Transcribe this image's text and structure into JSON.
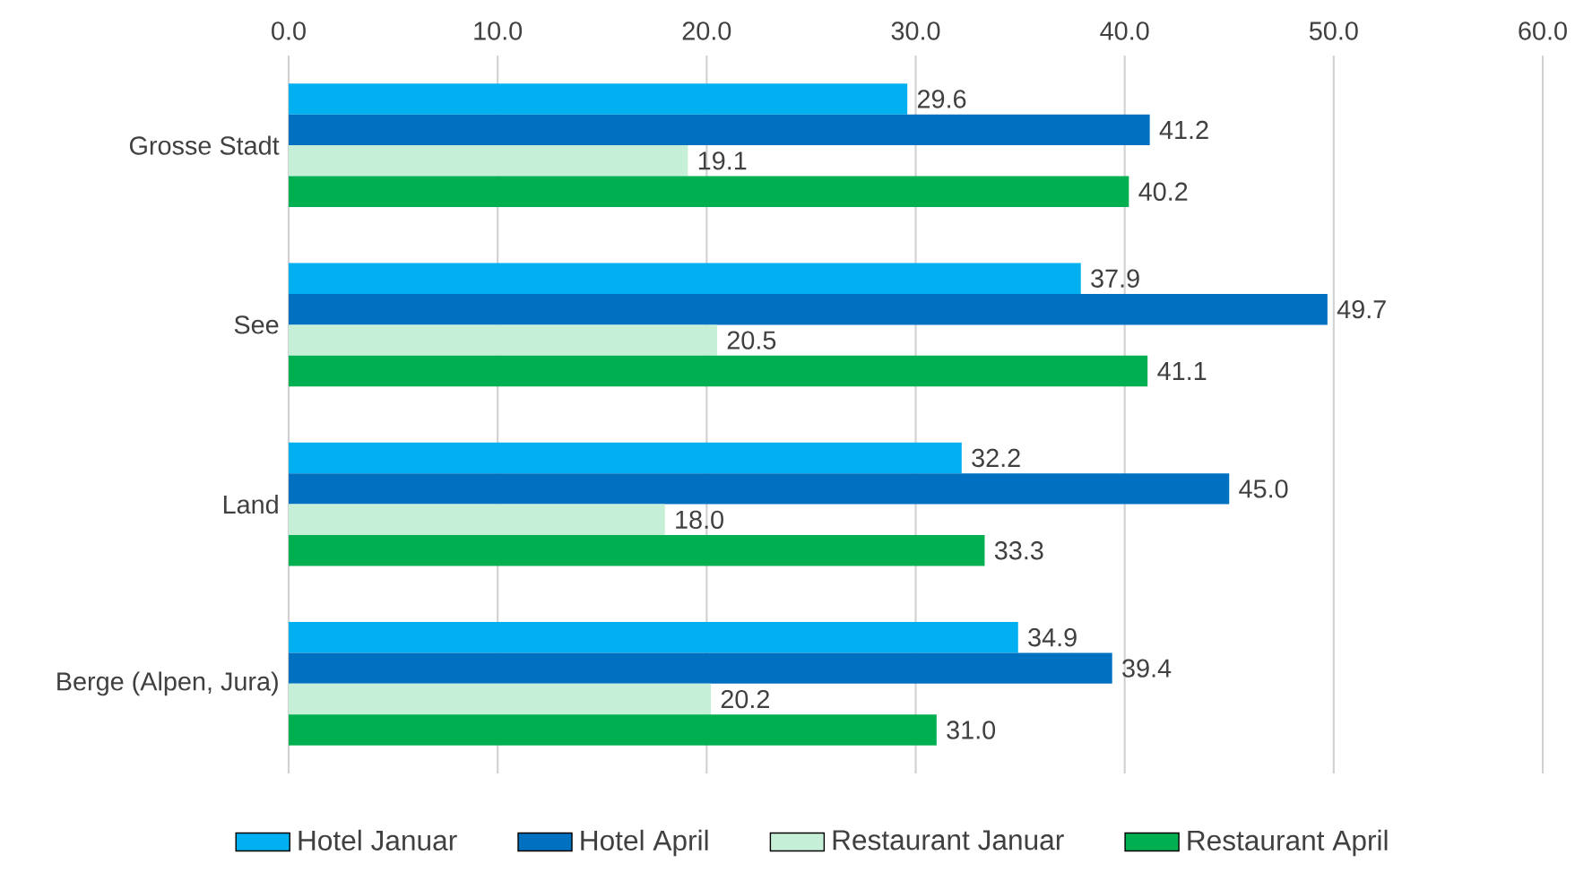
{
  "chart_data": {
    "type": "bar",
    "orientation": "horizontal",
    "categories": [
      "Grosse Stadt",
      "See",
      "Land",
      "Berge (Alpen, Jura)"
    ],
    "series": [
      {
        "name": "Hotel Januar",
        "color": "#00b0f0",
        "values": [
          29.6,
          37.9,
          32.2,
          34.9
        ],
        "value_labels": [
          "29.6",
          "37.9",
          "32.2",
          "34.9"
        ]
      },
      {
        "name": "Hotel April",
        "color": "#0070c0",
        "values": [
          41.2,
          49.7,
          45.0,
          39.4
        ],
        "value_labels": [
          "41.2",
          "49.7",
          "45.0",
          "39.4"
        ]
      },
      {
        "name": "Restaurant Januar",
        "color": "#c6efd7",
        "values": [
          19.1,
          20.5,
          18.0,
          20.2
        ],
        "value_labels": [
          "19.1",
          "20.5",
          "18.0",
          "20.2"
        ]
      },
      {
        "name": "Restaurant April",
        "color": "#00b050",
        "values": [
          40.2,
          41.1,
          33.3,
          31.0
        ],
        "value_labels": [
          "40.2",
          "41.1",
          "33.3",
          "31.0"
        ]
      }
    ],
    "xlim": [
      0,
      60
    ],
    "xticks": [
      {
        "value": 0,
        "label": "0.0"
      },
      {
        "value": 10,
        "label": "10.0"
      },
      {
        "value": 20,
        "label": "20.0"
      },
      {
        "value": 30,
        "label": "30.0"
      },
      {
        "value": 40,
        "label": "40.0"
      },
      {
        "value": 50,
        "label": "50.0"
      },
      {
        "value": 60,
        "label": "60.0"
      }
    ],
    "grid": "x",
    "legend": "bottom"
  }
}
